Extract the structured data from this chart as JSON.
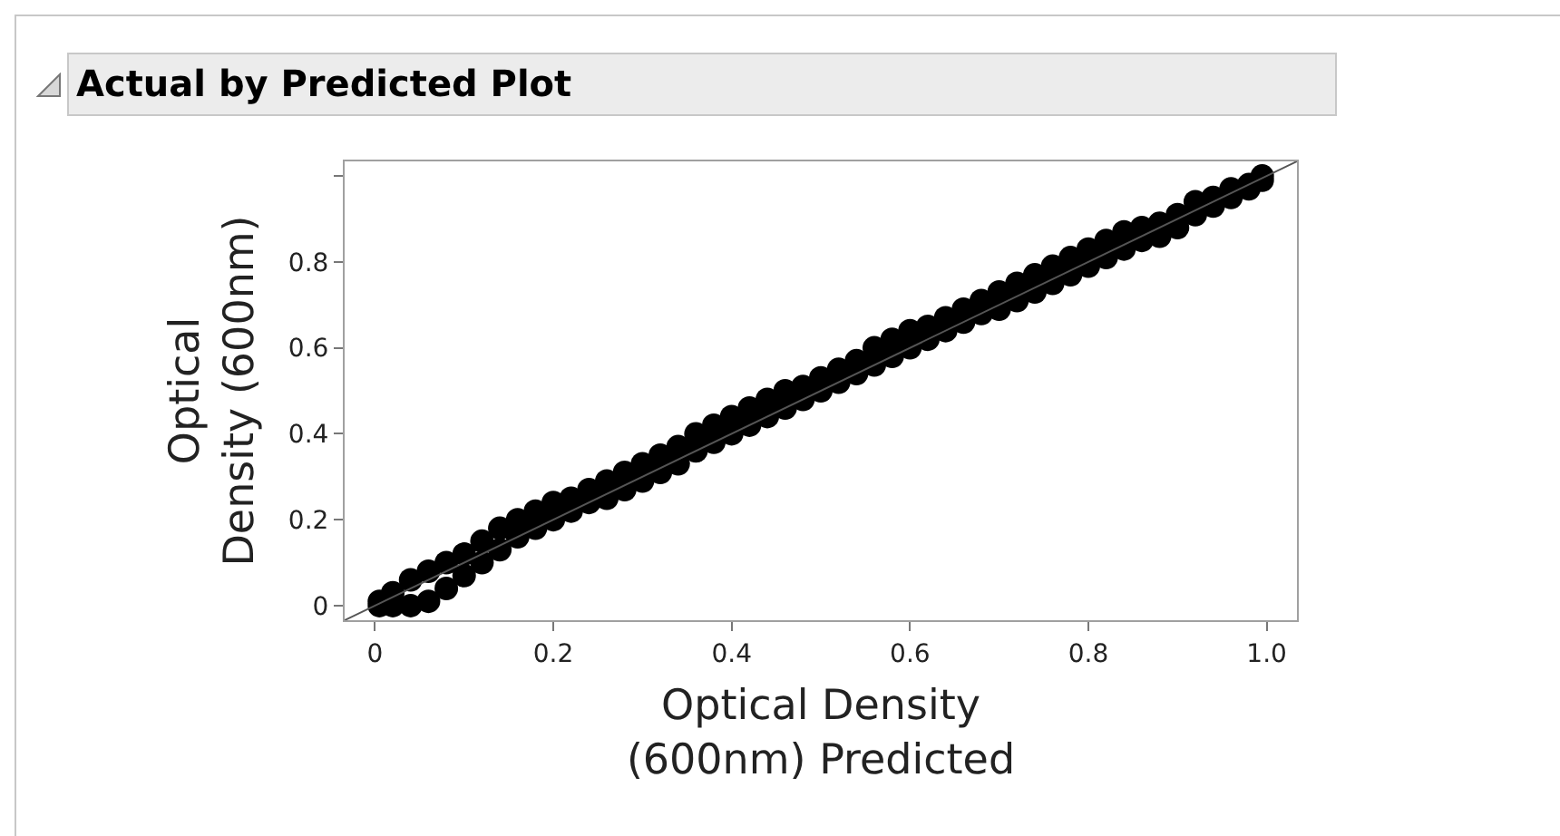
{
  "chart_data": {
    "type": "scatter",
    "title": "Actual by Predicted Plot",
    "xlabel": "Optical Density\n(600nm) Predicted",
    "ylabel": "Optical\nDensity (600nm)",
    "xlim": [
      -0.034,
      1.034
    ],
    "ylim": [
      -0.034,
      1.034
    ],
    "xticks": [
      0,
      0.2,
      0.4,
      0.6,
      0.8,
      {
        "value": 1,
        "label": "1.0"
      }
    ],
    "yticks": [
      0,
      0.2,
      0.4,
      0.6,
      0.8,
      {
        "value": 1,
        "label": null
      }
    ],
    "grid": false,
    "legend": false,
    "marker": "circle",
    "series": [
      {
        "color": "#000000",
        "x": [
          0.005,
          0.02,
          0.04,
          0.06,
          0.08,
          0.1,
          0.12,
          0.14,
          0.16,
          0.18,
          0.2,
          0.22,
          0.24,
          0.26,
          0.28,
          0.3,
          0.32,
          0.34,
          0.36,
          0.38,
          0.4,
          0.42,
          0.44,
          0.46,
          0.48,
          0.5,
          0.52,
          0.54,
          0.56,
          0.58,
          0.6,
          0.62,
          0.64,
          0.66,
          0.68,
          0.7,
          0.72,
          0.74,
          0.76,
          0.78,
          0.8,
          0.82,
          0.84,
          0.86,
          0.88,
          0.9,
          0.92,
          0.94,
          0.96,
          0.98,
          0.995,
          0.005,
          0.02,
          0.04,
          0.06,
          0.08,
          0.1,
          0.12,
          0.14,
          0.16,
          0.18,
          0.2,
          0.22,
          0.24,
          0.26,
          0.28,
          0.3,
          0.32,
          0.34,
          0.36,
          0.38,
          0.4,
          0.42,
          0.44,
          0.46,
          0.48,
          0.5,
          0.52,
          0.54,
          0.56,
          0.58,
          0.6,
          0.62,
          0.64,
          0.66,
          0.68,
          0.7,
          0.72,
          0.74,
          0.76,
          0.78,
          0.8,
          0.82,
          0.84,
          0.86,
          0.88,
          0.9,
          0.92,
          0.94,
          0.96,
          0.98,
          0.995
        ],
        "values": [
          0.01,
          0.03,
          0.06,
          0.08,
          0.1,
          0.12,
          0.15,
          0.18,
          0.2,
          0.22,
          0.24,
          0.25,
          0.27,
          0.29,
          0.31,
          0.33,
          0.35,
          0.37,
          0.4,
          0.42,
          0.44,
          0.46,
          0.48,
          0.5,
          0.51,
          0.53,
          0.55,
          0.57,
          0.6,
          0.62,
          0.64,
          0.65,
          0.67,
          0.69,
          0.71,
          0.73,
          0.75,
          0.77,
          0.79,
          0.81,
          0.83,
          0.85,
          0.87,
          0.88,
          0.89,
          0.91,
          0.94,
          0.95,
          0.97,
          0.98,
          1.0,
          0,
          0,
          0,
          0.01,
          0.04,
          0.07,
          0.1,
          0.13,
          0.16,
          0.18,
          0.2,
          0.22,
          0.24,
          0.25,
          0.27,
          0.29,
          0.31,
          0.33,
          0.36,
          0.38,
          0.4,
          0.42,
          0.44,
          0.46,
          0.48,
          0.5,
          0.52,
          0.54,
          0.56,
          0.58,
          0.6,
          0.62,
          0.64,
          0.66,
          0.68,
          0.69,
          0.71,
          0.73,
          0.75,
          0.77,
          0.79,
          0.81,
          0.83,
          0.85,
          0.86,
          0.88,
          0.91,
          0.93,
          0.95,
          0.97,
          0.99
        ]
      },
      {
        "type": "line",
        "color": "#555555",
        "line_style": "solid",
        "marker": "none",
        "x": [
          -0.034,
          1.034
        ],
        "values": [
          -0.034,
          1.034
        ]
      }
    ]
  }
}
